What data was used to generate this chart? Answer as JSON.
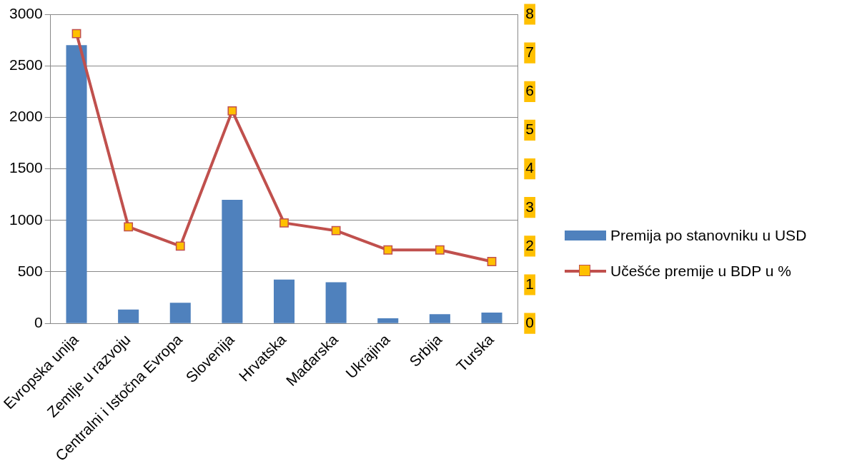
{
  "chart_data": {
    "type": "bar",
    "categories": [
      "Evropska unija",
      "Zemlje u razvoju",
      "Centralni i Istočna Evropa",
      "Slovenija",
      "Hrvatska",
      "Mađarska",
      "Ukrajina",
      "Srbija",
      "Turska"
    ],
    "series": [
      {
        "name": "Premija po stanovniku u USD",
        "color": "#4f81bd",
        "values": [
          2700,
          135,
          200,
          1200,
          425,
          400,
          50,
          90,
          105
        ]
      },
      {
        "name": "Učešće premije u BDP u %",
        "type": "line",
        "axis": "y2",
        "color": "#c0504d",
        "marker": "square",
        "values": [
          7.5,
          2.5,
          2.0,
          5.5,
          2.6,
          2.4,
          1.9,
          1.9,
          1.6
        ]
      }
    ],
    "ylim": [
      0,
      3000
    ],
    "yticks": [
      0,
      500,
      1000,
      1500,
      2000,
      2500,
      3000
    ],
    "y2lim": [
      0,
      8
    ],
    "y2ticks": [
      0,
      1,
      2,
      3,
      4,
      5,
      6,
      7,
      8
    ],
    "grid": "y",
    "legend": "right"
  }
}
